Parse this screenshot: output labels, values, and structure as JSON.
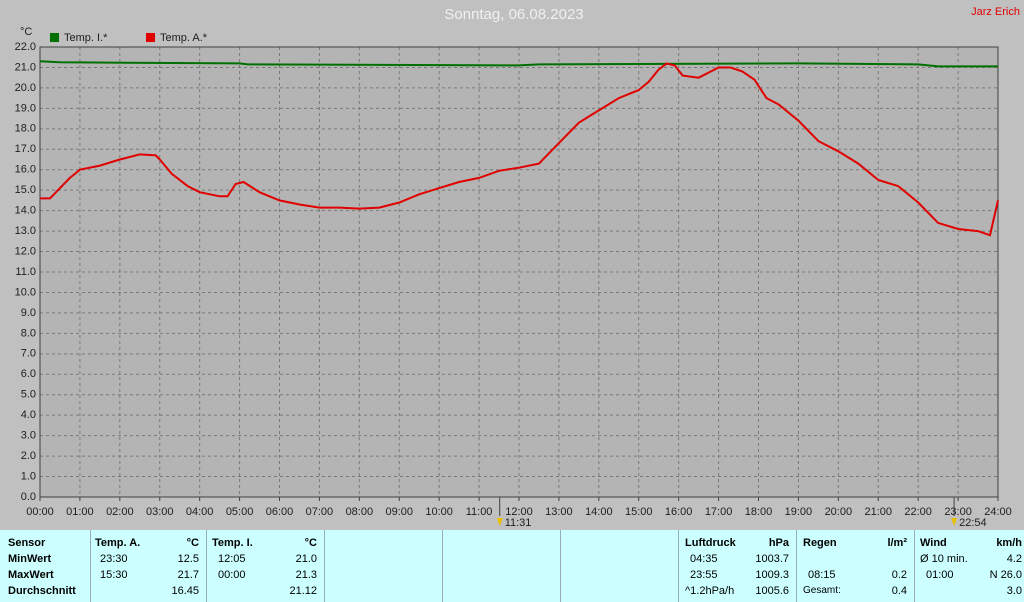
{
  "chart_data": {
    "type": "line",
    "title": "Sonntag, 06.08.2023",
    "author": "Jarz Erich",
    "y_unit": "°C",
    "xlim": [
      0,
      24
    ],
    "ylim": [
      0,
      22
    ],
    "grid": true,
    "legend": "top-left",
    "xticks": [
      {
        "value": 0,
        "label": "00:00"
      },
      {
        "value": 1,
        "label": "01:00"
      },
      {
        "value": 2,
        "label": "02:00"
      },
      {
        "value": 3,
        "label": "03:00"
      },
      {
        "value": 4,
        "label": "04:00"
      },
      {
        "value": 5,
        "label": "05:00"
      },
      {
        "value": 6,
        "label": "06:00"
      },
      {
        "value": 7,
        "label": "07:00"
      },
      {
        "value": 8,
        "label": "08:00"
      },
      {
        "value": 9,
        "label": "09:00"
      },
      {
        "value": 10,
        "label": "10:00"
      },
      {
        "value": 11,
        "label": "11:00"
      },
      {
        "value": 12,
        "label": "12:00"
      },
      {
        "value": 13,
        "label": "13:00"
      },
      {
        "value": 14,
        "label": "14:00"
      },
      {
        "value": 15,
        "label": "15:00"
      },
      {
        "value": 16,
        "label": "16:00"
      },
      {
        "value": 17,
        "label": "17:00"
      },
      {
        "value": 18,
        "label": "18:00"
      },
      {
        "value": 19,
        "label": "19:00"
      },
      {
        "value": 20,
        "label": "20:00"
      },
      {
        "value": 21,
        "label": "21:00"
      },
      {
        "value": 22,
        "label": "22:00"
      },
      {
        "value": 23,
        "label": "23:00"
      },
      {
        "value": 24,
        "label": "24:00"
      }
    ],
    "yticks": [
      {
        "value": 0,
        "label": "0.0"
      },
      {
        "value": 1,
        "label": "1.0"
      },
      {
        "value": 2,
        "label": "2.0"
      },
      {
        "value": 3,
        "label": "3.0"
      },
      {
        "value": 4,
        "label": "4.0"
      },
      {
        "value": 5,
        "label": "5.0"
      },
      {
        "value": 6,
        "label": "6.0"
      },
      {
        "value": 7,
        "label": "7.0"
      },
      {
        "value": 8,
        "label": "8.0"
      },
      {
        "value": 9,
        "label": "9.0"
      },
      {
        "value": 10,
        "label": "10.0"
      },
      {
        "value": 11,
        "label": "11.0"
      },
      {
        "value": 12,
        "label": "12.0"
      },
      {
        "value": 13,
        "label": "13.0"
      },
      {
        "value": 14,
        "label": "14.0"
      },
      {
        "value": 15,
        "label": "15.0"
      },
      {
        "value": 16,
        "label": "16.0"
      },
      {
        "value": 17,
        "label": "17.0"
      },
      {
        "value": 18,
        "label": "18.0"
      },
      {
        "value": 19,
        "label": "19.0"
      },
      {
        "value": 20,
        "label": "20.0"
      },
      {
        "value": 21,
        "label": "21.0"
      },
      {
        "value": 22,
        "label": "22.0"
      }
    ],
    "annotations": [
      {
        "x": 11.5167,
        "label": "11:31"
      },
      {
        "x": 22.9,
        "label": "22:54"
      }
    ],
    "series": [
      {
        "name": "Temp. I.*",
        "color": "#007000",
        "x": [
          0,
          0.5,
          5,
          5.2,
          12,
          12.5,
          19,
          22,
          22.5,
          24
        ],
        "values": [
          21.3,
          21.25,
          21.2,
          21.15,
          21.1,
          21.15,
          21.2,
          21.15,
          21.05,
          21.05
        ]
      },
      {
        "name": "Temp. A.*",
        "color": "#e00000",
        "x": [
          0,
          0.25,
          0.5,
          0.75,
          1,
          1.5,
          2,
          2.5,
          2.9,
          3,
          3.3,
          3.7,
          4,
          4.5,
          4.7,
          4.9,
          5.1,
          5.5,
          6,
          6.5,
          7,
          7.5,
          8,
          8.5,
          9,
          9.5,
          10,
          10.5,
          11,
          11.5,
          12,
          12.5,
          13,
          13.5,
          14,
          14.5,
          15,
          15.25,
          15.5,
          15.7,
          15.9,
          16.1,
          16.5,
          17,
          17.3,
          17.6,
          17.9,
          18.2,
          18.5,
          19,
          19.5,
          20,
          20.5,
          21,
          21.5,
          22,
          22.5,
          23,
          23.5,
          23.8,
          24
        ],
        "values": [
          14.6,
          14.6,
          15.1,
          15.6,
          16.0,
          16.2,
          16.5,
          16.75,
          16.7,
          16.5,
          15.8,
          15.2,
          14.9,
          14.7,
          14.7,
          15.3,
          15.4,
          14.9,
          14.5,
          14.3,
          14.15,
          14.15,
          14.1,
          14.15,
          14.4,
          14.8,
          15.1,
          15.4,
          15.6,
          15.95,
          16.1,
          16.3,
          17.3,
          18.3,
          18.9,
          19.5,
          19.9,
          20.3,
          20.9,
          21.2,
          21.1,
          20.6,
          20.5,
          21.0,
          21.0,
          20.8,
          20.4,
          19.5,
          19.2,
          18.4,
          17.4,
          16.9,
          16.3,
          15.5,
          15.2,
          14.4,
          13.4,
          13.1,
          13.0,
          12.8,
          14.5
        ]
      }
    ]
  },
  "table": {
    "sensor": {
      "header": "Sensor",
      "rows": [
        "MinWert",
        "MaxWert",
        "Durchschnitt"
      ]
    },
    "temp_a": {
      "header": "Temp. A.",
      "unit": "°C",
      "min": [
        "23:30",
        "12.5"
      ],
      "max": [
        "15:30",
        "21.7"
      ],
      "avg": [
        "16.45"
      ]
    },
    "temp_i": {
      "header": "Temp. I.",
      "unit": "°C",
      "min": [
        "12:05",
        "21.0"
      ],
      "max": [
        "00:00",
        "21.3"
      ],
      "avg": [
        "21.12"
      ]
    },
    "luftdruck": {
      "header": "Luftdruck",
      "unit": "hPa",
      "min": [
        "04:35",
        "1003.7"
      ],
      "max": [
        "23:55",
        "1009.3"
      ],
      "avg": [
        "^1.2hPa/h",
        "1005.6"
      ]
    },
    "regen": {
      "header": "Regen",
      "unit": "l/m²",
      "max": [
        "08:15",
        "0.2"
      ],
      "avg": [
        "Gesamt:",
        "0.4"
      ]
    },
    "wind": {
      "header": "Wind",
      "unit": "km/h",
      "min": [
        "Ø 10 min.",
        "4.2"
      ],
      "max": [
        "01:00",
        "N 26.0"
      ],
      "avg": [
        "3.0"
      ]
    }
  }
}
